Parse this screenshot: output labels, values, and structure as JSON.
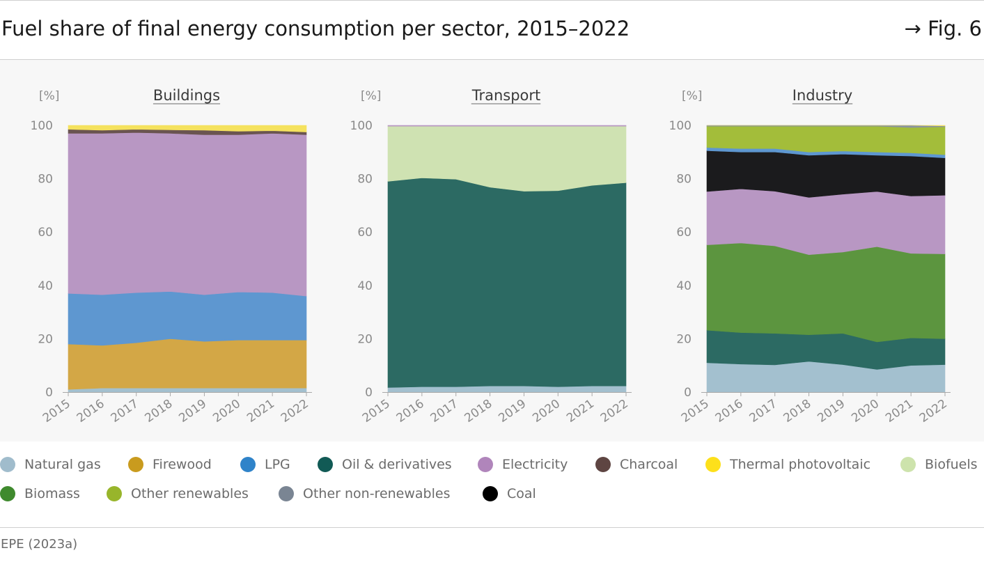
{
  "header": {
    "title": "Fuel share of final energy consumption per sector, 2015–2022",
    "figure_ref": "→ Fig. 6"
  },
  "source": "EPE (2023a)",
  "colors": {
    "Natural gas": "#a3c0cf",
    "Firewood": "#d3a746",
    "LPG": "#5e97d0",
    "Oil & derivatives": "#2c6a63",
    "Electricity": "#b897c3",
    "Charcoal": "#6a5450",
    "Thermal photovoltaic": "#f5e25e",
    "Biofuels": "#cfe2b2",
    "Biomass": "#5c953f",
    "Other renewables": "#a3bd3a",
    "Other non-renewables": "#8a94a1",
    "Coal": "#1b1b1d"
  },
  "legend": [
    {
      "label": "Natural gas",
      "color": "#a0bccc"
    },
    {
      "label": "Firewood",
      "color": "#c99b1e"
    },
    {
      "label": "LPG",
      "color": "#2f83c9"
    },
    {
      "label": "Oil & derivatives",
      "color": "#115a55"
    },
    {
      "label": "Electricity",
      "color": "#b085bb"
    },
    {
      "label": "Charcoal",
      "color": "#5e4542"
    },
    {
      "label": "Thermal photovoltaic",
      "color": "#fde01b"
    },
    {
      "label": "Biofuels",
      "color": "#cde3ac"
    },
    {
      "label": "Biomass",
      "color": "#3f8a2e"
    },
    {
      "label": "Other renewables",
      "color": "#98b52b"
    },
    {
      "label": "Other non-renewables",
      "color": "#7a8593"
    },
    {
      "label": "Coal",
      "color": "#000000"
    }
  ],
  "chart_data": [
    {
      "type": "area",
      "stacked": true,
      "title": "Buildings",
      "ylabel": "[%]",
      "ylim": [
        0,
        100
      ],
      "yticks": [
        0,
        20,
        40,
        60,
        80,
        100
      ],
      "x": [
        "2015",
        "2016",
        "2017",
        "2018",
        "2019",
        "2020",
        "2021",
        "2022"
      ],
      "series": [
        {
          "name": "Natural gas",
          "values": [
            1.0,
            1.5,
            1.5,
            1.5,
            1.5,
            1.5,
            1.5,
            1.5
          ]
        },
        {
          "name": "Firewood",
          "values": [
            17.0,
            16.0,
            17.0,
            18.5,
            17.5,
            18.0,
            18.0,
            18.0
          ]
        },
        {
          "name": "LPG",
          "values": [
            19.0,
            19.0,
            18.8,
            17.7,
            17.5,
            18.0,
            17.8,
            16.5
          ]
        },
        {
          "name": "Electricity",
          "values": [
            60.0,
            60.5,
            60.0,
            59.3,
            60.0,
            59.0,
            59.7,
            60.5
          ]
        },
        {
          "name": "Charcoal",
          "values": [
            1.5,
            1.2,
            1.2,
            1.3,
            1.7,
            1.3,
            1.0,
            1.0
          ]
        },
        {
          "name": "Thermal photovoltaic",
          "values": [
            1.5,
            1.8,
            1.5,
            1.7,
            1.8,
            2.2,
            2.0,
            2.5
          ]
        }
      ]
    },
    {
      "type": "area",
      "stacked": true,
      "title": "Transport",
      "ylabel": "[%]",
      "ylim": [
        0,
        100
      ],
      "yticks": [
        0,
        20,
        40,
        60,
        80,
        100
      ],
      "x": [
        "2015",
        "2016",
        "2017",
        "2018",
        "2019",
        "2020",
        "2021",
        "2022"
      ],
      "series": [
        {
          "name": "Natural gas",
          "values": [
            1.7,
            2.0,
            2.0,
            2.3,
            2.3,
            2.0,
            2.3,
            2.3
          ]
        },
        {
          "name": "Oil & derivatives",
          "values": [
            77.3,
            78.3,
            77.8,
            74.5,
            73.0,
            73.5,
            75.2,
            76.2
          ]
        },
        {
          "name": "Biofuels",
          "values": [
            20.7,
            19.4,
            19.9,
            22.9,
            24.4,
            24.2,
            22.2,
            21.2
          ]
        },
        {
          "name": "Electricity",
          "values": [
            0.3,
            0.3,
            0.3,
            0.3,
            0.3,
            0.3,
            0.3,
            0.3
          ]
        }
      ]
    },
    {
      "type": "area",
      "stacked": true,
      "title": "Industry",
      "ylabel": "[%]",
      "ylim": [
        0,
        100
      ],
      "yticks": [
        0,
        20,
        40,
        60,
        80,
        100
      ],
      "x": [
        "2015",
        "2016",
        "2017",
        "2018",
        "2019",
        "2020",
        "2021",
        "2022"
      ],
      "series": [
        {
          "name": "Natural gas",
          "values": [
            11.0,
            10.5,
            10.2,
            11.5,
            10.3,
            8.5,
            10.0,
            10.3
          ]
        },
        {
          "name": "Oil & derivatives",
          "values": [
            12.2,
            11.8,
            11.8,
            10.0,
            11.7,
            10.3,
            10.3,
            9.7
          ]
        },
        {
          "name": "Biomass",
          "values": [
            32.0,
            33.6,
            32.8,
            30.0,
            30.5,
            35.7,
            31.7,
            31.8
          ]
        },
        {
          "name": "Electricity",
          "values": [
            20.0,
            20.3,
            20.5,
            21.5,
            21.7,
            20.7,
            21.5,
            22.0
          ]
        },
        {
          "name": "Coal",
          "values": [
            15.3,
            13.8,
            14.7,
            15.8,
            15.0,
            13.6,
            15.0,
            14.0
          ]
        },
        {
          "name": "LPG",
          "values": [
            1.2,
            1.3,
            1.3,
            1.2,
            1.2,
            1.2,
            1.2,
            1.2
          ]
        },
        {
          "name": "Other renewables",
          "values": [
            8.0,
            8.4,
            8.4,
            9.7,
            9.3,
            9.7,
            9.5,
            10.5
          ]
        },
        {
          "name": "Other non-renewables",
          "values": [
            0.3,
            0.3,
            0.3,
            0.3,
            0.3,
            0.3,
            0.8,
            0.3
          ]
        },
        {
          "name": "Thermal photovoltaic",
          "values": [
            0.0,
            0.0,
            0.0,
            0.0,
            0.0,
            0.0,
            0.0,
            0.2
          ]
        }
      ]
    }
  ]
}
